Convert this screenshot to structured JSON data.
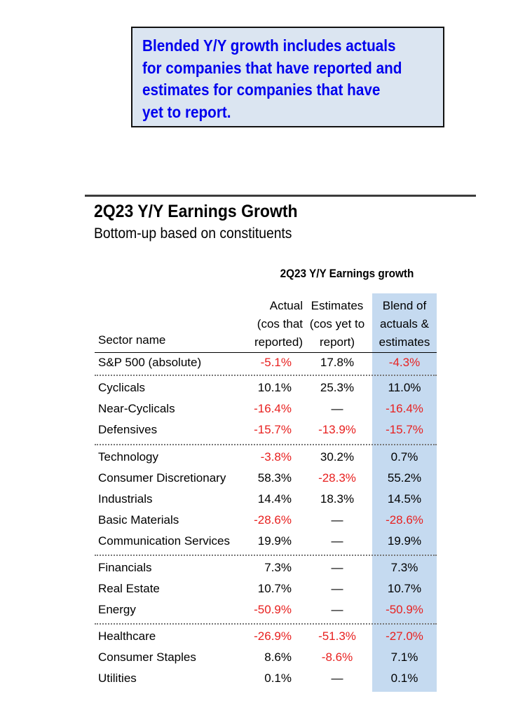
{
  "note": {
    "lines": [
      "Blended Y/Y growth includes actuals",
      "for companies that have reported and",
      "estimates for companies that have",
      "yet to report."
    ]
  },
  "header": {
    "title": "2Q23 Y/Y Earnings Growth",
    "subtitle": "Bottom-up based on constituents"
  },
  "table": {
    "group_title": "2Q23 Y/Y Earnings growth",
    "columns": {
      "sector": "Sector name",
      "actual": [
        "Actual",
        "(cos that",
        "reported)"
      ],
      "estimates": [
        "Estimates",
        "(cos yet to",
        "report)"
      ],
      "blend": [
        "Blend of",
        "actuals &",
        "estimates"
      ]
    },
    "groups": [
      {
        "rows": [
          {
            "sector": "S&P 500 (absolute)",
            "actual": "-5.1%",
            "estimates": "17.8%",
            "blend": "-4.3%"
          }
        ]
      },
      {
        "rows": [
          {
            "sector": "Cyclicals",
            "actual": "10.1%",
            "estimates": "25.3%",
            "blend": "11.0%"
          },
          {
            "sector": "Near-Cyclicals",
            "actual": "-16.4%",
            "estimates": "—",
            "blend": "-16.4%"
          },
          {
            "sector": "Defensives",
            "actual": "-15.7%",
            "estimates": "-13.9%",
            "blend": "-15.7%"
          }
        ]
      },
      {
        "rows": [
          {
            "sector": "Technology",
            "actual": "-3.8%",
            "estimates": "30.2%",
            "blend": "0.7%"
          },
          {
            "sector": "Consumer Discretionary",
            "actual": "58.3%",
            "estimates": "-28.3%",
            "blend": "55.2%"
          },
          {
            "sector": "Industrials",
            "actual": "14.4%",
            "estimates": "18.3%",
            "blend": "14.5%"
          },
          {
            "sector": "Basic Materials",
            "actual": "-28.6%",
            "estimates": "—",
            "blend": "-28.6%"
          },
          {
            "sector": "Communication Services",
            "actual": "19.9%",
            "estimates": "—",
            "blend": "19.9%"
          }
        ]
      },
      {
        "rows": [
          {
            "sector": "Financials",
            "actual": "7.3%",
            "estimates": "—",
            "blend": "7.3%"
          },
          {
            "sector": "Real Estate",
            "actual": "10.7%",
            "estimates": "—",
            "blend": "10.7%"
          },
          {
            "sector": "Energy",
            "actual": "-50.9%",
            "estimates": "—",
            "blend": "-50.9%"
          }
        ]
      },
      {
        "rows": [
          {
            "sector": "Healthcare",
            "actual": "-26.9%",
            "estimates": "-51.3%",
            "blend": "-27.0%"
          },
          {
            "sector": "Consumer Staples",
            "actual": "8.6%",
            "estimates": "-8.6%",
            "blend": "7.1%"
          },
          {
            "sector": "Utilities",
            "actual": "0.1%",
            "estimates": "—",
            "blend": "0.1%"
          }
        ]
      }
    ]
  },
  "colors": {
    "note_background": "#dbe5f1",
    "note_text": "#0000ee",
    "negative_value": "#e8201f",
    "blend_column_highlight": "#c5daf0"
  }
}
